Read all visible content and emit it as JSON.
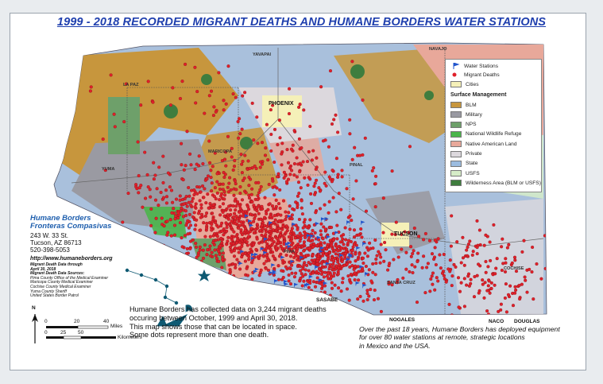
{
  "title": "1999 - 2018 RECORDED MIGRANT DEATHS AND HUMANE BORDERS WATER STATIONS",
  "legend": {
    "water_stations": "Water Stations",
    "migrant_deaths": "Migrant Deaths",
    "cities": "Cities",
    "surface_title": "Surface Management",
    "items": [
      {
        "label": "BLM",
        "color": "#c7963d"
      },
      {
        "label": "Military",
        "color": "#9a9aa2"
      },
      {
        "label": "NPS",
        "color": "#6ea06a"
      },
      {
        "label": "National Wildlife Refuge",
        "color": "#4bb54b"
      },
      {
        "label": "Native American Land",
        "color": "#e8a89a"
      },
      {
        "label": "Private",
        "color": "#dcd8dd"
      },
      {
        "label": "State",
        "color": "#9cbcdf"
      },
      {
        "label": "USFS",
        "color": "#d6ecc8"
      },
      {
        "label": "Wilderness Area (BLM or USFS)",
        "color": "#3f7d3e"
      }
    ]
  },
  "organization": {
    "name1": "Humane Borders",
    "name2": "Fronteras Compasivas",
    "address1": "243 W. 33 St.",
    "address2": "Tucson, AZ 86713",
    "phone": "520-398-5053",
    "website": "http://www.humaneborders.org",
    "data_note1": "Migrant Death Data through",
    "data_note2": "April 30, 2018",
    "sources_title": "Migrant Death Data Sources:",
    "sources": [
      "Pima County Office of the Medical Examiner",
      "Maricopa County Medical Examiner",
      "Cochise County Medical Examiner",
      "Yuma County Sheriff",
      "United States Border Patrol"
    ]
  },
  "scale": {
    "miles_ticks": [
      "0",
      "20",
      "40"
    ],
    "miles_label": "Miles",
    "km_ticks": [
      "0",
      "25",
      "50"
    ],
    "km_label": "Kilometers",
    "north": "N"
  },
  "map_labels": {
    "yavapai": "YAVAPAI",
    "navajo": "NAVAJO",
    "la_paz": "LA PAZ",
    "maricopa": "MARICOPA",
    "phoenix": "PHOENIX",
    "yuma": "YUMA",
    "pinal": "PINAL",
    "pima": "PIMA",
    "tucson": "TUCSON",
    "cochise": "COCHISE",
    "santa_cruz": "SANTA CRUZ",
    "sasabe": "SASABE",
    "nogales": "NOGALES",
    "naco": "NACO",
    "douglas": "DOUGLAS"
  },
  "paragraph_left": [
    "Humane Borders has collected data on 3,244 migrant deaths",
    "occuring between October, 1999 and April 30, 2018.",
    "This map shows those that can be located in space.",
    "Some dots represent more than one death."
  ],
  "paragraph_right": [
    "Over the past 18 years, Humane Borders has deployed equipment",
    "for over 80 water stations at remote, strategic locations",
    "in Mexico and the USA."
  ],
  "colors": {
    "death_dot": "#e0202a",
    "water_station": "#2255cc",
    "title": "#1f3fae"
  }
}
